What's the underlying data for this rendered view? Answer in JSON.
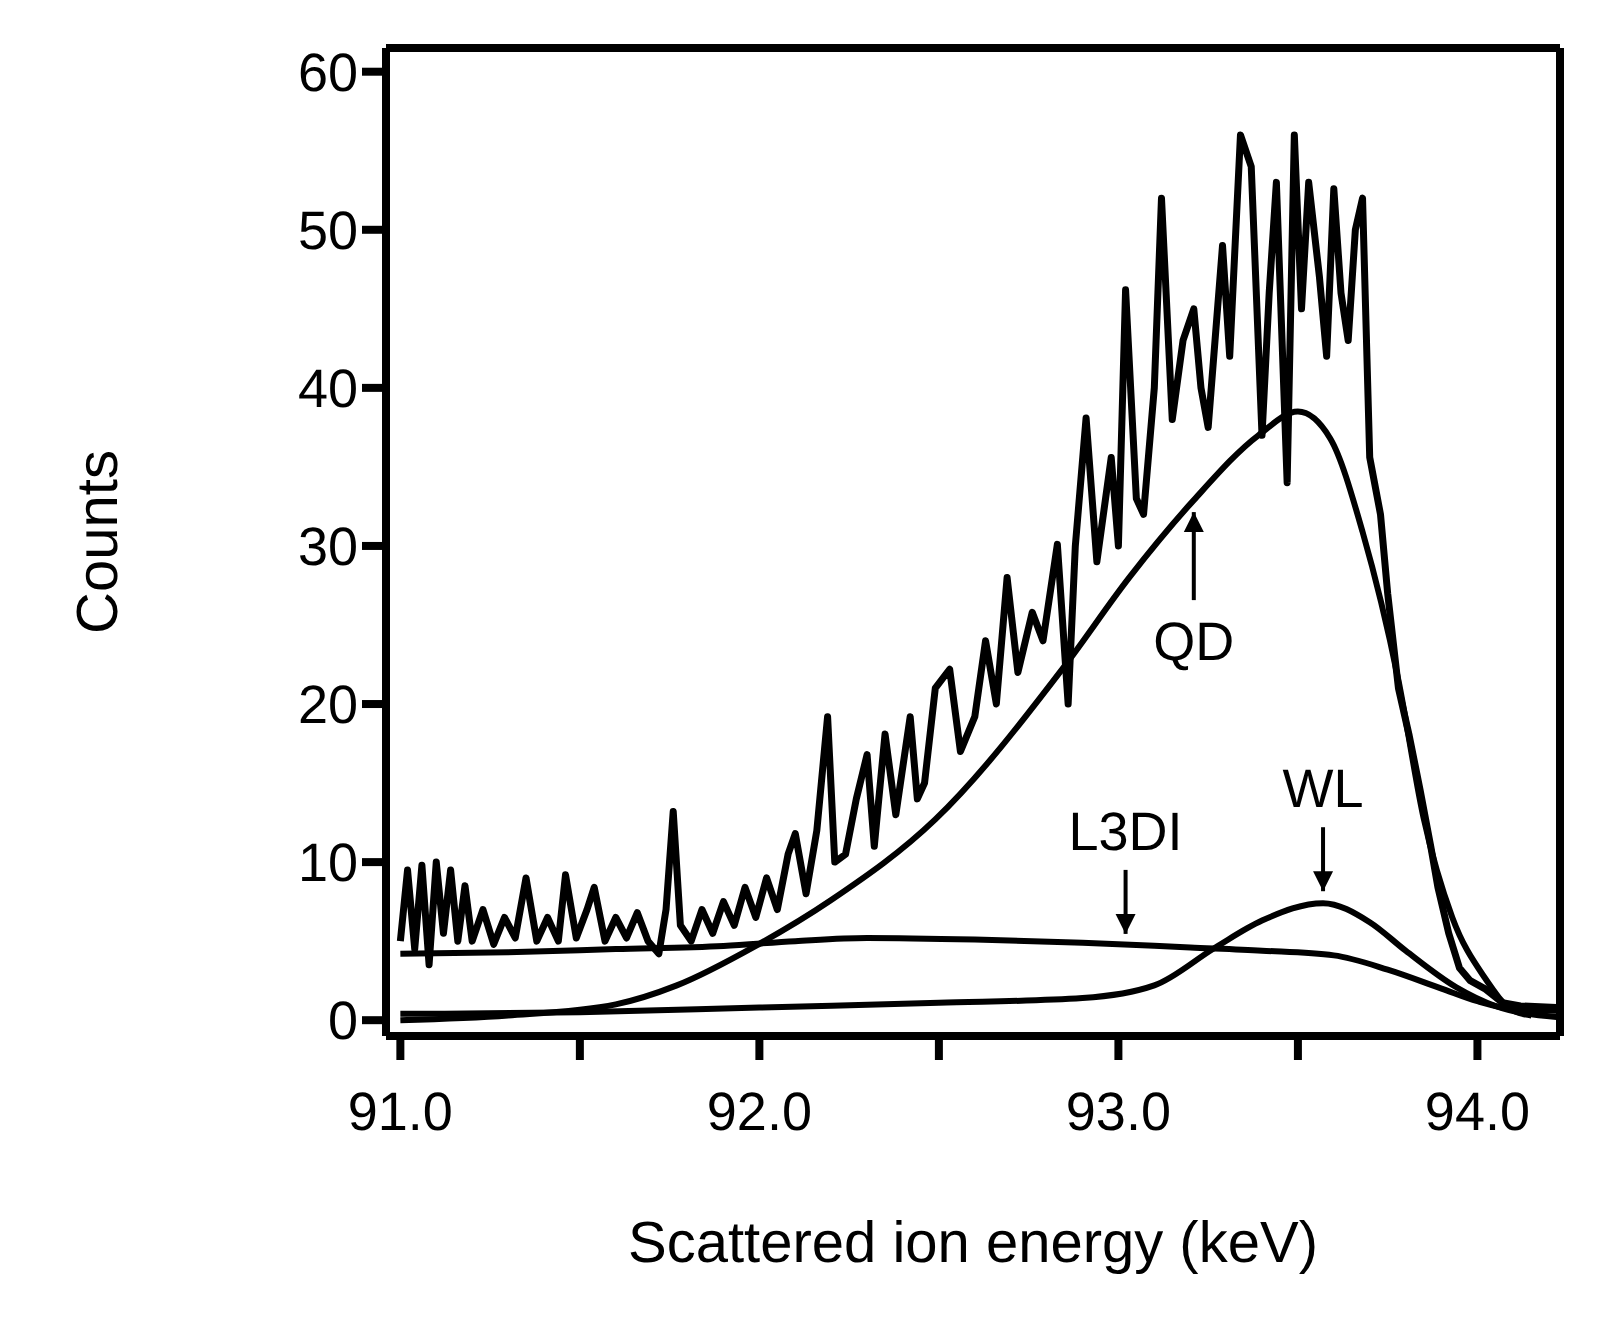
{
  "chart_data": {
    "type": "line",
    "xlabel": "Scattered ion energy (keV)",
    "ylabel": "Counts",
    "xlim": [
      90.96,
      94.23
    ],
    "xticks": [
      {
        "value": 91.0,
        "label": "91.0"
      },
      {
        "value": 91.5,
        "label": null
      },
      {
        "value": 92.0,
        "label": "92.0"
      },
      {
        "value": 92.5,
        "label": null
      },
      {
        "value": 93.0,
        "label": "93.0"
      },
      {
        "value": 93.5,
        "label": null
      },
      {
        "value": 94.0,
        "label": "94.0"
      }
    ],
    "ylim": [
      -1,
      61.5
    ],
    "yticks": [
      0,
      10,
      20,
      30,
      40,
      50,
      60
    ],
    "marker": "none",
    "line_style": "solid",
    "series": [
      {
        "color": "#000000",
        "x": [
          91.0,
          91.02,
          91.04,
          91.06,
          91.08,
          91.1,
          91.12,
          91.14,
          91.16,
          91.18,
          91.2,
          91.23,
          91.26,
          91.29,
          91.32,
          91.35,
          91.38,
          91.41,
          91.44,
          91.46,
          91.49,
          91.52,
          91.54,
          91.57,
          91.6,
          91.63,
          91.66,
          91.69,
          91.72,
          91.74,
          91.76,
          91.78,
          91.81,
          91.84,
          91.87,
          91.9,
          91.93,
          91.96,
          91.99,
          92.02,
          92.05,
          92.08,
          92.1,
          92.13,
          92.16,
          92.19,
          92.21,
          92.24,
          92.27,
          92.3,
          92.32,
          92.35,
          92.38,
          92.42,
          92.44,
          92.46,
          92.49,
          92.53,
          92.56,
          92.6,
          92.63,
          92.66,
          92.69,
          92.72,
          92.76,
          92.79,
          92.83,
          92.86,
          92.88,
          92.91,
          92.94,
          92.98,
          93.0,
          93.02,
          93.05,
          93.07,
          93.1,
          93.12,
          93.15,
          93.18,
          93.21,
          93.23,
          93.25,
          93.29,
          93.31,
          93.34,
          93.37,
          93.4,
          93.42,
          93.44,
          93.47,
          93.49,
          93.51,
          93.53,
          93.56,
          93.58,
          93.6,
          93.62,
          93.64,
          93.66,
          93.68,
          93.7,
          93.73,
          93.75,
          93.78,
          93.81,
          93.84,
          93.87,
          93.89,
          93.92,
          93.95,
          93.98,
          94.02,
          94.07,
          94.12,
          94.22
        ],
        "values": [
          5,
          9.5,
          4.5,
          9.8,
          3.5,
          10,
          5.5,
          9.5,
          5,
          8.5,
          5,
          7,
          4.8,
          6.5,
          5.2,
          9,
          5,
          6.5,
          5,
          9.2,
          5.2,
          7,
          8.4,
          5,
          6.5,
          5.2,
          6.8,
          5,
          4.2,
          7,
          13.2,
          6,
          5,
          7,
          5.5,
          7.5,
          6,
          8.4,
          6.5,
          9,
          7,
          10.5,
          11.8,
          8,
          12,
          19.2,
          10,
          10.5,
          14,
          16.8,
          11,
          18.1,
          13,
          19.2,
          14,
          15,
          21,
          22.2,
          17,
          19.2,
          24,
          20,
          28,
          22,
          25.8,
          24,
          30.1,
          20,
          30,
          38.1,
          29,
          35.6,
          30,
          46.2,
          33,
          32,
          40,
          52,
          38,
          43,
          45,
          40,
          37.5,
          49,
          42,
          56,
          54,
          37,
          46,
          53,
          34,
          56,
          45,
          53,
          47,
          42,
          52.6,
          46,
          43,
          50,
          52,
          35.6,
          32,
          27,
          21,
          18,
          14.6,
          11,
          8.4,
          5.5,
          3.3,
          2.5,
          2,
          1.1,
          0.9,
          0.8
        ]
      },
      {
        "color": "#000000",
        "x": [
          91.0,
          91.3,
          91.6,
          91.77,
          91.99,
          92.2,
          92.49,
          92.85,
          93.03,
          93.21,
          93.39,
          93.5,
          93.59,
          93.68,
          93.78,
          93.85,
          93.93,
          94.02,
          94.1,
          94.15
        ],
        "values": [
          0,
          0.3,
          1.0,
          2.2,
          4.7,
          7.6,
          12.7,
          22.4,
          28,
          32.9,
          37,
          38.5,
          36.8,
          30.9,
          21.5,
          12.8,
          6.5,
          2.7,
          0.6,
          0.3
        ]
      },
      {
        "color": "#000000",
        "x": [
          91.0,
          91.3,
          91.6,
          91.9,
          92.1,
          92.3,
          92.6,
          92.9,
          93.2,
          93.4,
          93.6,
          93.75,
          93.9,
          94.0,
          94.1,
          94.22
        ],
        "values": [
          4.2,
          4.3,
          4.5,
          4.7,
          5.0,
          5.2,
          5.1,
          4.9,
          4.6,
          4.4,
          4.1,
          3.2,
          2.0,
          1.2,
          0.7,
          0.6
        ]
      },
      {
        "color": "#000000",
        "x": [
          91.0,
          91.5,
          92.0,
          92.5,
          92.9,
          93.1,
          93.27,
          93.4,
          93.57,
          93.7,
          93.8,
          93.94,
          94.05,
          94.22
        ],
        "values": [
          0.4,
          0.5,
          0.8,
          1.1,
          1.4,
          2.2,
          4.6,
          6.3,
          7.4,
          6.2,
          4.4,
          2.1,
          0.9,
          0.2
        ]
      }
    ],
    "annotations": [
      {
        "text": "QD",
        "x": 93.21,
        "y": 32.9
      },
      {
        "text": "L3DI",
        "x": 93.02,
        "y": 4.7
      },
      {
        "text": "WL",
        "x": 93.57,
        "y": 7.4
      }
    ]
  }
}
